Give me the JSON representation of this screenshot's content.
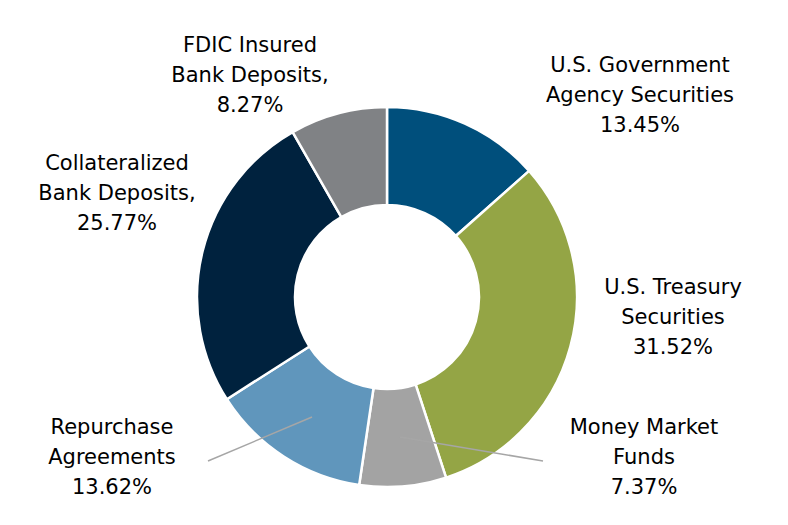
{
  "chart_data": {
    "type": "pie",
    "categories": [
      "U.S. Government Agency Securities",
      "U.S. Treasury Securities",
      "Money Market Funds",
      "Repurchase Agreements",
      "Collateralized Bank Deposits,",
      "FDIC Insured Bank Deposits,"
    ],
    "values": [
      13.45,
      31.52,
      7.37,
      13.62,
      25.77,
      8.27
    ],
    "value_labels": [
      "13.45%",
      "31.52%",
      "7.37%",
      "13.62%",
      "25.77%",
      "8.27%"
    ],
    "colors": [
      "#004f7c",
      "#94a545",
      "#a3a3a3",
      "#6096bc",
      "#00223e",
      "#808285"
    ],
    "data_labels": true
  }
}
